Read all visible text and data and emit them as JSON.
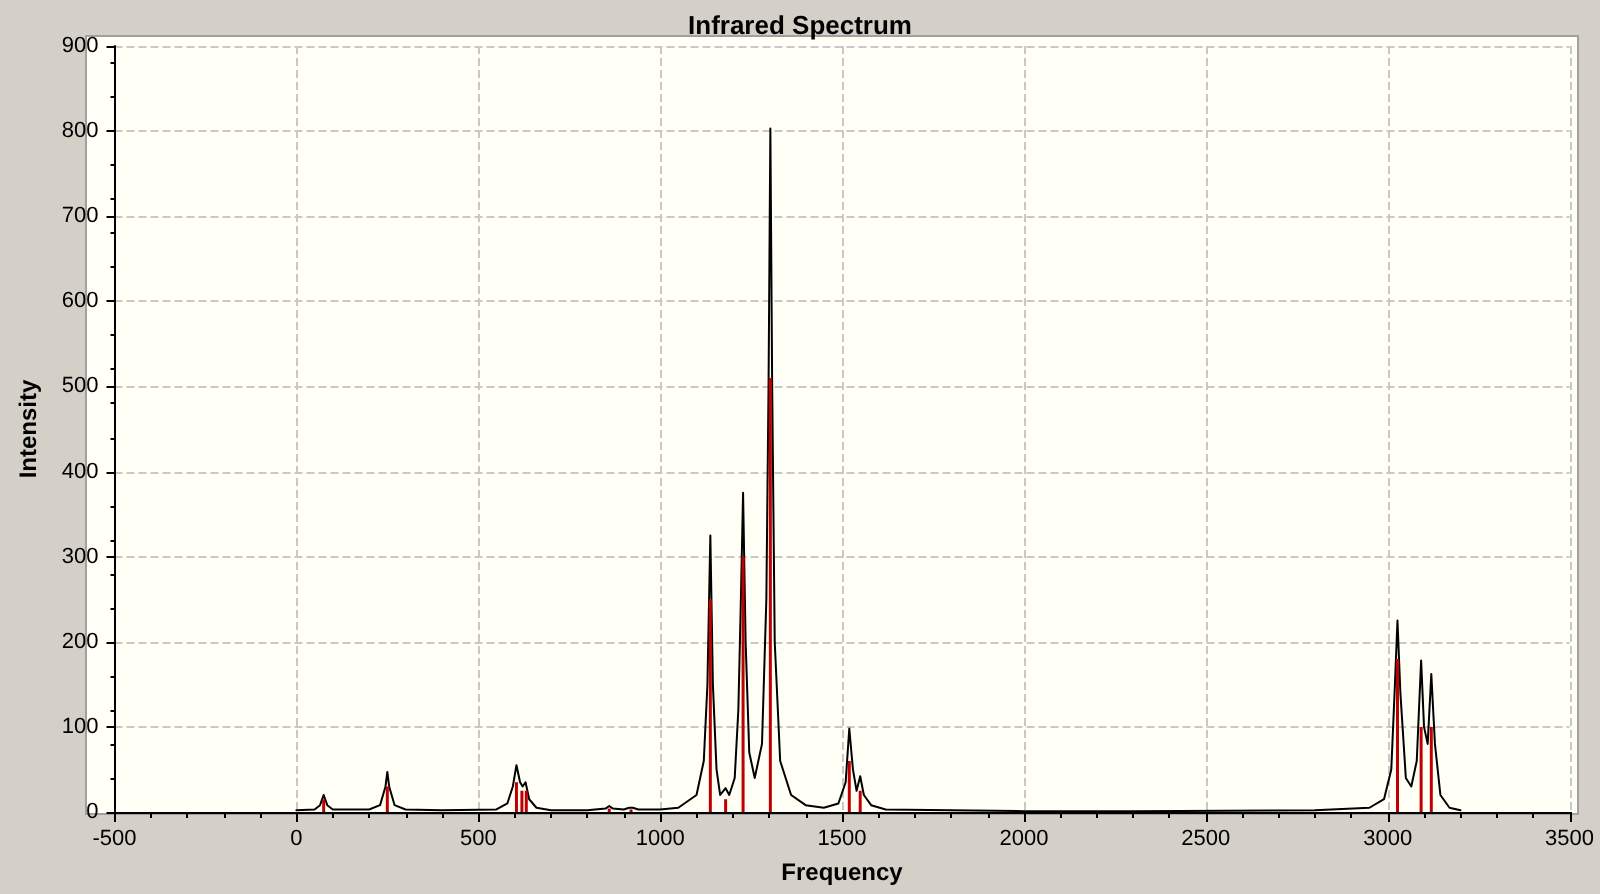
{
  "chart_data": {
    "type": "line",
    "title": "Infrared Spectrum",
    "xlabel": "Frequency",
    "ylabel": "Intensity",
    "xlim": [
      -500,
      3500
    ],
    "xticks": [
      -500,
      0,
      500,
      1000,
      1500,
      2000,
      2500,
      3000,
      3500
    ],
    "ylim": [
      0,
      900
    ],
    "yticks": [
      0,
      100,
      200,
      300,
      400,
      500,
      600,
      700,
      800,
      900
    ],
    "grid": true,
    "marker": "none",
    "line_style": "solid",
    "series": [
      {
        "color": "#000000",
        "x": [
          0,
          50,
          65,
          75,
          85,
          100,
          200,
          230,
          245,
          250,
          255,
          270,
          300,
          400,
          550,
          580,
          595,
          605,
          615,
          622,
          630,
          640,
          660,
          700,
          800,
          850,
          860,
          870,
          900,
          915,
          925,
          940,
          1000,
          1050,
          1100,
          1120,
          1130,
          1138,
          1145,
          1155,
          1165,
          1180,
          1190,
          1205,
          1215,
          1222,
          1228,
          1235,
          1245,
          1260,
          1280,
          1292,
          1298,
          1303,
          1308,
          1315,
          1330,
          1360,
          1400,
          1450,
          1490,
          1510,
          1520,
          1530,
          1540,
          1550,
          1560,
          1580,
          1620,
          1800,
          2000,
          2300,
          2800,
          2950,
          2990,
          3010,
          3020,
          3027,
          3035,
          3050,
          3065,
          3080,
          3092,
          3100,
          3110,
          3120,
          3130,
          3145,
          3170,
          3200
        ],
        "values": [
          2,
          3,
          8,
          20,
          8,
          3,
          3,
          8,
          30,
          47,
          30,
          8,
          3,
          2,
          3,
          10,
          30,
          55,
          35,
          30,
          35,
          15,
          5,
          2,
          2,
          4,
          7,
          4,
          3,
          5,
          5,
          3,
          3,
          5,
          20,
          60,
          150,
          325,
          150,
          50,
          20,
          28,
          20,
          40,
          120,
          250,
          375,
          200,
          70,
          40,
          80,
          250,
          500,
          803,
          500,
          200,
          60,
          20,
          8,
          5,
          10,
          35,
          98,
          50,
          25,
          42,
          20,
          8,
          3,
          2,
          1,
          1,
          2,
          5,
          15,
          50,
          150,
          225,
          140,
          40,
          30,
          60,
          178,
          100,
          80,
          162,
          80,
          20,
          5,
          2
        ]
      },
      {
        "type": "bar",
        "color": "#c00000",
        "x": [
          75,
          250,
          605,
          620,
          632,
          860,
          920,
          1138,
          1180,
          1228,
          1303,
          1520,
          1550,
          3027,
          3092,
          3120
        ],
        "values": [
          15,
          30,
          35,
          25,
          25,
          4,
          3,
          250,
          15,
          300,
          510,
          60,
          25,
          180,
          100,
          100
        ]
      }
    ]
  }
}
